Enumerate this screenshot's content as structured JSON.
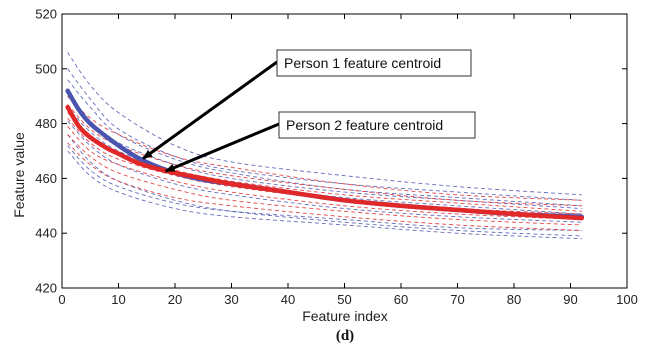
{
  "chart_data": {
    "type": "line",
    "title": "",
    "caption": "(d)",
    "xlabel": "Feature index",
    "ylabel": "Feature value",
    "xlim": [
      0,
      100
    ],
    "ylim": [
      420,
      520
    ],
    "xticks": [
      0,
      10,
      20,
      30,
      40,
      50,
      60,
      70,
      80,
      90,
      100
    ],
    "yticks": [
      420,
      440,
      460,
      480,
      500,
      520
    ],
    "grid": false,
    "legend": "none",
    "series": [
      {
        "role": "centroid",
        "color": "#4a55b0",
        "style": "solid-thick",
        "x": [
          1,
          3,
          5,
          8,
          10,
          13,
          16,
          20,
          25,
          30,
          40,
          50,
          60,
          70,
          80,
          92
        ],
        "y": [
          492,
          485,
          480,
          475,
          472,
          468,
          465,
          462,
          459.5,
          458,
          455,
          452,
          450,
          448.5,
          447,
          446
        ]
      },
      {
        "role": "centroid",
        "color": "#e02828",
        "style": "solid-thick",
        "x": [
          1,
          3,
          5,
          8,
          10,
          13,
          16,
          20,
          25,
          30,
          40,
          50,
          60,
          70,
          80,
          92
        ],
        "y": [
          486,
          479,
          475,
          471,
          469,
          466,
          464,
          462,
          460,
          458,
          455,
          452,
          450,
          448.5,
          447,
          445.5
        ]
      },
      {
        "role": "sample",
        "color": "#4a55b0",
        "style": "dashed",
        "x": [
          1,
          5,
          10,
          20,
          30,
          50,
          70,
          92
        ],
        "y": [
          506,
          494,
          484,
          472,
          466,
          461,
          457,
          454
        ]
      },
      {
        "role": "sample",
        "color": "#4a55b0",
        "style": "dashed",
        "x": [
          1,
          5,
          10,
          20,
          30,
          50,
          70,
          92
        ],
        "y": [
          500,
          489,
          478,
          468,
          463,
          458,
          455,
          452
        ]
      },
      {
        "role": "sample",
        "color": "#4a55b0",
        "style": "dashed",
        "x": [
          1,
          5,
          10,
          20,
          30,
          50,
          70,
          92
        ],
        "y": [
          496,
          486,
          476,
          467,
          462,
          456,
          453,
          450
        ]
      },
      {
        "role": "sample",
        "color": "#4a55b0",
        "style": "dashed",
        "x": [
          1,
          5,
          10,
          20,
          30,
          50,
          70,
          92
        ],
        "y": [
          490,
          481,
          473,
          465,
          460,
          455,
          452,
          449
        ]
      },
      {
        "role": "sample",
        "color": "#4a55b0",
        "style": "dashed",
        "x": [
          1,
          5,
          10,
          20,
          30,
          50,
          70,
          92
        ],
        "y": [
          486,
          477,
          470,
          462,
          458,
          453,
          450,
          447
        ]
      },
      {
        "role": "sample",
        "color": "#4a55b0",
        "style": "dashed",
        "x": [
          1,
          5,
          10,
          20,
          30,
          50,
          70,
          92
        ],
        "y": [
          481,
          472,
          465,
          458,
          454,
          449,
          446,
          444
        ]
      },
      {
        "role": "sample",
        "color": "#4a55b0",
        "style": "dashed",
        "x": [
          1,
          5,
          10,
          20,
          30,
          50,
          70,
          92
        ],
        "y": [
          476,
          466,
          459,
          452,
          448,
          444,
          441,
          439
        ]
      },
      {
        "role": "sample",
        "color": "#4a55b0",
        "style": "dashed",
        "x": [
          1,
          5,
          10,
          20,
          30,
          50,
          70,
          92
        ],
        "y": [
          472,
          463,
          457,
          451,
          448,
          445,
          442,
          441
        ]
      },
      {
        "role": "sample",
        "color": "#4a55b0",
        "style": "dashed",
        "x": [
          1,
          5,
          10,
          20,
          30,
          50,
          70,
          92
        ],
        "y": [
          470,
          461,
          455,
          449,
          446,
          443,
          440,
          438
        ]
      },
      {
        "role": "sample",
        "color": "#e02828",
        "style": "dashed",
        "x": [
          1,
          5,
          10,
          20,
          30,
          50,
          70,
          92
        ],
        "y": [
          490,
          482,
          476,
          468,
          464,
          458,
          454,
          452
        ]
      },
      {
        "role": "sample",
        "color": "#e02828",
        "style": "dashed",
        "x": [
          1,
          5,
          10,
          20,
          30,
          50,
          70,
          92
        ],
        "y": [
          487,
          478,
          472,
          465,
          461,
          456,
          452,
          450
        ]
      },
      {
        "role": "sample",
        "color": "#e02828",
        "style": "dashed",
        "x": [
          1,
          5,
          10,
          20,
          30,
          50,
          70,
          92
        ],
        "y": [
          484,
          475,
          469,
          463,
          459,
          454,
          451,
          448
        ]
      },
      {
        "role": "sample",
        "color": "#e02828",
        "style": "dashed",
        "x": [
          1,
          5,
          10,
          20,
          30,
          50,
          70,
          92
        ],
        "y": [
          482,
          473,
          467,
          461,
          457,
          452,
          449,
          447
        ]
      },
      {
        "role": "sample",
        "color": "#e02828",
        "style": "dashed",
        "x": [
          1,
          5,
          10,
          20,
          30,
          50,
          70,
          92
        ],
        "y": [
          479,
          470,
          465,
          459,
          455,
          450,
          447,
          445
        ]
      },
      {
        "role": "sample",
        "color": "#e02828",
        "style": "dashed",
        "x": [
          1,
          5,
          10,
          20,
          30,
          50,
          70,
          92
        ],
        "y": [
          476,
          468,
          462,
          456,
          452,
          448,
          445,
          443
        ]
      },
      {
        "role": "sample",
        "color": "#e02828",
        "style": "dashed",
        "x": [
          1,
          5,
          10,
          20,
          30,
          50,
          70,
          92
        ],
        "y": [
          473,
          465,
          459,
          453,
          450,
          446,
          443,
          441
        ]
      }
    ],
    "annotations": [
      {
        "text": "Person 1 feature centroid",
        "x": 14,
        "y": 468
      },
      {
        "text": "Person 2 feature centroid",
        "x": 18,
        "y": 463
      }
    ]
  }
}
